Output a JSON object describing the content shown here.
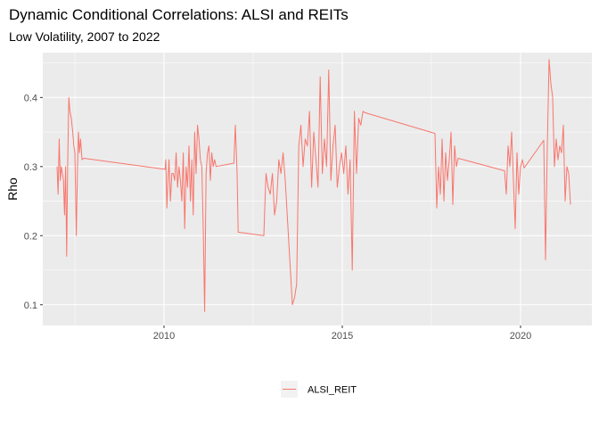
{
  "chart_data": {
    "type": "line",
    "title": "Dynamic Conditional Correlations: ALSI and REITs",
    "subtitle": "Low Volatility, 2007 to 2022",
    "xlabel": "",
    "ylabel": "Rho",
    "xlim": [
      2006.6,
      2022.0
    ],
    "ylim": [
      0.07,
      0.465
    ],
    "x_ticks": [
      2010,
      2015,
      2020
    ],
    "x_tick_labels": [
      "2010",
      "2015",
      "2020"
    ],
    "y_ticks": [
      0.1,
      0.2,
      0.3,
      0.4
    ],
    "y_tick_labels": [
      "0.1",
      "0.2",
      "0.3",
      "0.4"
    ],
    "grid": true,
    "legend_position": "bottom",
    "colors": {
      "panel": "#ebebeb",
      "grid": "#ffffff",
      "series": "#f8766d"
    },
    "series": [
      {
        "name": "ALSI_REIT",
        "x": [
          2007.0,
          2007.03,
          2007.06,
          2007.09,
          2007.12,
          2007.15,
          2007.18,
          2007.21,
          2007.24,
          2007.27,
          2007.3,
          2007.33,
          2007.36,
          2007.4,
          2007.44,
          2007.47,
          2007.5,
          2007.54,
          2007.57,
          2007.6,
          2007.63,
          2007.66,
          2007.7,
          2007.75,
          2010.03,
          2010.05,
          2010.08,
          2010.11,
          2010.14,
          2010.18,
          2010.22,
          2010.26,
          2010.3,
          2010.34,
          2010.38,
          2010.42,
          2010.46,
          2010.5,
          2010.54,
          2010.58,
          2010.62,
          2010.66,
          2010.7,
          2010.74,
          2010.78,
          2010.82,
          2010.86,
          2010.9,
          2010.94,
          2010.98,
          2011.02,
          2011.06,
          2011.1,
          2011.14,
          2011.18,
          2011.22,
          2011.26,
          2011.3,
          2011.34,
          2011.38,
          2011.42,
          2011.46,
          2011.96,
          2012.0,
          2012.05,
          2012.08,
          2012.8,
          2012.86,
          2012.92,
          2012.98,
          2013.04,
          2013.1,
          2013.16,
          2013.22,
          2013.28,
          2013.34,
          2013.4,
          2013.6,
          2013.66,
          2013.72,
          2013.78,
          2013.84,
          2013.9,
          2013.96,
          2014.02,
          2014.08,
          2014.14,
          2014.2,
          2014.26,
          2014.32,
          2014.38,
          2014.44,
          2014.5,
          2014.56,
          2014.62,
          2014.68,
          2014.74,
          2014.8,
          2014.86,
          2014.92,
          2014.98,
          2015.04,
          2015.1,
          2015.16,
          2015.22,
          2015.28,
          2015.34,
          2015.4,
          2015.46,
          2015.52,
          2015.58,
          2015.64,
          2017.6,
          2017.65,
          2017.7,
          2017.75,
          2017.8,
          2017.85,
          2017.9,
          2017.95,
          2018.0,
          2018.05,
          2018.1,
          2018.15,
          2018.2,
          2018.25,
          2019.55,
          2019.6,
          2019.65,
          2019.7,
          2019.75,
          2019.8,
          2019.85,
          2019.9,
          2019.95,
          2020.0,
          2020.05,
          2020.1,
          2020.65,
          2020.7,
          2020.75,
          2020.8,
          2020.85,
          2020.9,
          2020.95,
          2021.0,
          2021.05,
          2021.1,
          2021.15,
          2021.2,
          2021.25,
          2021.3,
          2021.35,
          2021.4
        ],
        "values": [
          0.3,
          0.26,
          0.34,
          0.28,
          0.3,
          0.29,
          0.28,
          0.23,
          0.3,
          0.17,
          0.31,
          0.4,
          0.38,
          0.37,
          0.35,
          0.33,
          0.32,
          0.2,
          0.29,
          0.35,
          0.32,
          0.34,
          0.31,
          0.312,
          0.296,
          0.31,
          0.24,
          0.28,
          0.31,
          0.25,
          0.29,
          0.29,
          0.28,
          0.32,
          0.27,
          0.3,
          0.28,
          0.25,
          0.32,
          0.21,
          0.3,
          0.27,
          0.33,
          0.25,
          0.31,
          0.23,
          0.35,
          0.29,
          0.36,
          0.34,
          0.31,
          0.3,
          0.21,
          0.09,
          0.29,
          0.32,
          0.33,
          0.28,
          0.32,
          0.3,
          0.31,
          0.3,
          0.305,
          0.36,
          0.29,
          0.205,
          0.2,
          0.29,
          0.27,
          0.26,
          0.29,
          0.23,
          0.25,
          0.31,
          0.29,
          0.32,
          0.28,
          0.1,
          0.11,
          0.13,
          0.33,
          0.36,
          0.3,
          0.34,
          0.33,
          0.38,
          0.27,
          0.35,
          0.31,
          0.27,
          0.43,
          0.29,
          0.34,
          0.3,
          0.44,
          0.28,
          0.33,
          0.36,
          0.27,
          0.3,
          0.32,
          0.29,
          0.33,
          0.26,
          0.31,
          0.15,
          0.38,
          0.29,
          0.37,
          0.36,
          0.38,
          0.378,
          0.348,
          0.24,
          0.3,
          0.26,
          0.34,
          0.25,
          0.32,
          0.28,
          0.31,
          0.35,
          0.245,
          0.33,
          0.3,
          0.312,
          0.294,
          0.26,
          0.33,
          0.3,
          0.35,
          0.28,
          0.21,
          0.32,
          0.26,
          0.3,
          0.31,
          0.298,
          0.338,
          0.165,
          0.33,
          0.455,
          0.42,
          0.4,
          0.3,
          0.34,
          0.31,
          0.33,
          0.32,
          0.36,
          0.25,
          0.3,
          0.29,
          0.245
        ]
      }
    ]
  }
}
